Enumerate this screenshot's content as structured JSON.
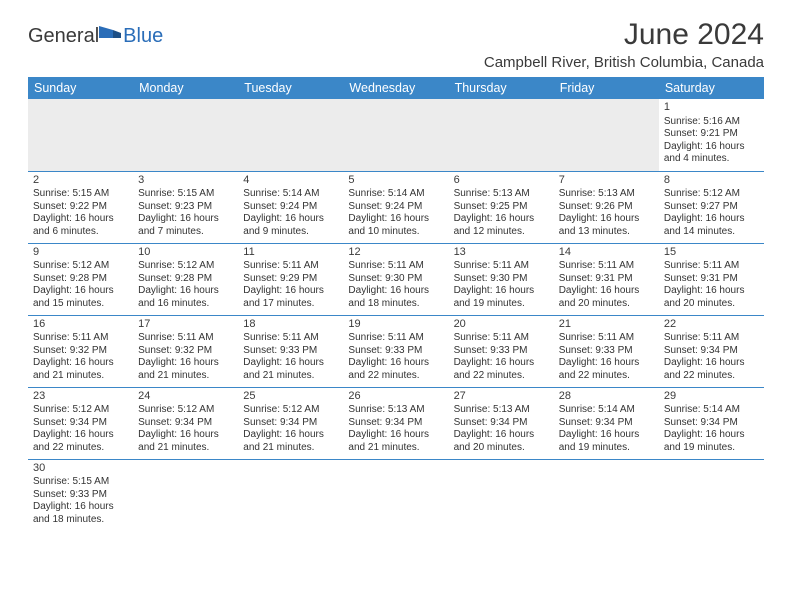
{
  "logo": {
    "part1": "General",
    "part2": "Blue"
  },
  "title": "June 2024",
  "location": "Campbell River, British Columbia, Canada",
  "colors": {
    "header_bg": "#3b87c8",
    "header_text": "#ffffff",
    "empty_bg": "#ececec",
    "border": "#3b87c8",
    "text": "#333333",
    "logo_blue": "#2a6db8"
  },
  "fonts": {
    "title_size": 30,
    "location_size": 15,
    "header_cell_size": 12.5,
    "body_size": 10,
    "daynum_size": 11
  },
  "weekdays": [
    "Sunday",
    "Monday",
    "Tuesday",
    "Wednesday",
    "Thursday",
    "Friday",
    "Saturday"
  ],
  "weeks": [
    [
      null,
      null,
      null,
      null,
      null,
      null,
      {
        "d": "1",
        "sr": "Sunrise: 5:16 AM",
        "ss": "Sunset: 9:21 PM",
        "dl1": "Daylight: 16 hours",
        "dl2": "and 4 minutes."
      }
    ],
    [
      {
        "d": "2",
        "sr": "Sunrise: 5:15 AM",
        "ss": "Sunset: 9:22 PM",
        "dl1": "Daylight: 16 hours",
        "dl2": "and 6 minutes."
      },
      {
        "d": "3",
        "sr": "Sunrise: 5:15 AM",
        "ss": "Sunset: 9:23 PM",
        "dl1": "Daylight: 16 hours",
        "dl2": "and 7 minutes."
      },
      {
        "d": "4",
        "sr": "Sunrise: 5:14 AM",
        "ss": "Sunset: 9:24 PM",
        "dl1": "Daylight: 16 hours",
        "dl2": "and 9 minutes."
      },
      {
        "d": "5",
        "sr": "Sunrise: 5:14 AM",
        "ss": "Sunset: 9:24 PM",
        "dl1": "Daylight: 16 hours",
        "dl2": "and 10 minutes."
      },
      {
        "d": "6",
        "sr": "Sunrise: 5:13 AM",
        "ss": "Sunset: 9:25 PM",
        "dl1": "Daylight: 16 hours",
        "dl2": "and 12 minutes."
      },
      {
        "d": "7",
        "sr": "Sunrise: 5:13 AM",
        "ss": "Sunset: 9:26 PM",
        "dl1": "Daylight: 16 hours",
        "dl2": "and 13 minutes."
      },
      {
        "d": "8",
        "sr": "Sunrise: 5:12 AM",
        "ss": "Sunset: 9:27 PM",
        "dl1": "Daylight: 16 hours",
        "dl2": "and 14 minutes."
      }
    ],
    [
      {
        "d": "9",
        "sr": "Sunrise: 5:12 AM",
        "ss": "Sunset: 9:28 PM",
        "dl1": "Daylight: 16 hours",
        "dl2": "and 15 minutes."
      },
      {
        "d": "10",
        "sr": "Sunrise: 5:12 AM",
        "ss": "Sunset: 9:28 PM",
        "dl1": "Daylight: 16 hours",
        "dl2": "and 16 minutes."
      },
      {
        "d": "11",
        "sr": "Sunrise: 5:11 AM",
        "ss": "Sunset: 9:29 PM",
        "dl1": "Daylight: 16 hours",
        "dl2": "and 17 minutes."
      },
      {
        "d": "12",
        "sr": "Sunrise: 5:11 AM",
        "ss": "Sunset: 9:30 PM",
        "dl1": "Daylight: 16 hours",
        "dl2": "and 18 minutes."
      },
      {
        "d": "13",
        "sr": "Sunrise: 5:11 AM",
        "ss": "Sunset: 9:30 PM",
        "dl1": "Daylight: 16 hours",
        "dl2": "and 19 minutes."
      },
      {
        "d": "14",
        "sr": "Sunrise: 5:11 AM",
        "ss": "Sunset: 9:31 PM",
        "dl1": "Daylight: 16 hours",
        "dl2": "and 20 minutes."
      },
      {
        "d": "15",
        "sr": "Sunrise: 5:11 AM",
        "ss": "Sunset: 9:31 PM",
        "dl1": "Daylight: 16 hours",
        "dl2": "and 20 minutes."
      }
    ],
    [
      {
        "d": "16",
        "sr": "Sunrise: 5:11 AM",
        "ss": "Sunset: 9:32 PM",
        "dl1": "Daylight: 16 hours",
        "dl2": "and 21 minutes."
      },
      {
        "d": "17",
        "sr": "Sunrise: 5:11 AM",
        "ss": "Sunset: 9:32 PM",
        "dl1": "Daylight: 16 hours",
        "dl2": "and 21 minutes."
      },
      {
        "d": "18",
        "sr": "Sunrise: 5:11 AM",
        "ss": "Sunset: 9:33 PM",
        "dl1": "Daylight: 16 hours",
        "dl2": "and 21 minutes."
      },
      {
        "d": "19",
        "sr": "Sunrise: 5:11 AM",
        "ss": "Sunset: 9:33 PM",
        "dl1": "Daylight: 16 hours",
        "dl2": "and 22 minutes."
      },
      {
        "d": "20",
        "sr": "Sunrise: 5:11 AM",
        "ss": "Sunset: 9:33 PM",
        "dl1": "Daylight: 16 hours",
        "dl2": "and 22 minutes."
      },
      {
        "d": "21",
        "sr": "Sunrise: 5:11 AM",
        "ss": "Sunset: 9:33 PM",
        "dl1": "Daylight: 16 hours",
        "dl2": "and 22 minutes."
      },
      {
        "d": "22",
        "sr": "Sunrise: 5:11 AM",
        "ss": "Sunset: 9:34 PM",
        "dl1": "Daylight: 16 hours",
        "dl2": "and 22 minutes."
      }
    ],
    [
      {
        "d": "23",
        "sr": "Sunrise: 5:12 AM",
        "ss": "Sunset: 9:34 PM",
        "dl1": "Daylight: 16 hours",
        "dl2": "and 22 minutes."
      },
      {
        "d": "24",
        "sr": "Sunrise: 5:12 AM",
        "ss": "Sunset: 9:34 PM",
        "dl1": "Daylight: 16 hours",
        "dl2": "and 21 minutes."
      },
      {
        "d": "25",
        "sr": "Sunrise: 5:12 AM",
        "ss": "Sunset: 9:34 PM",
        "dl1": "Daylight: 16 hours",
        "dl2": "and 21 minutes."
      },
      {
        "d": "26",
        "sr": "Sunrise: 5:13 AM",
        "ss": "Sunset: 9:34 PM",
        "dl1": "Daylight: 16 hours",
        "dl2": "and 21 minutes."
      },
      {
        "d": "27",
        "sr": "Sunrise: 5:13 AM",
        "ss": "Sunset: 9:34 PM",
        "dl1": "Daylight: 16 hours",
        "dl2": "and 20 minutes."
      },
      {
        "d": "28",
        "sr": "Sunrise: 5:14 AM",
        "ss": "Sunset: 9:34 PM",
        "dl1": "Daylight: 16 hours",
        "dl2": "and 19 minutes."
      },
      {
        "d": "29",
        "sr": "Sunrise: 5:14 AM",
        "ss": "Sunset: 9:34 PM",
        "dl1": "Daylight: 16 hours",
        "dl2": "and 19 minutes."
      }
    ],
    [
      {
        "d": "30",
        "sr": "Sunrise: 5:15 AM",
        "ss": "Sunset: 9:33 PM",
        "dl1": "Daylight: 16 hours",
        "dl2": "and 18 minutes."
      },
      null,
      null,
      null,
      null,
      null,
      null
    ]
  ]
}
